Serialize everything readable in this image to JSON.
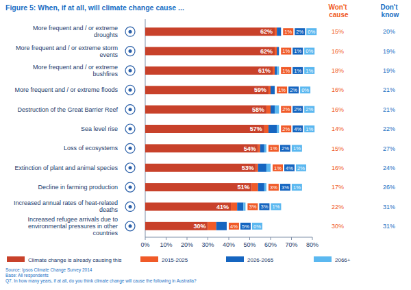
{
  "chart_data": {
    "type": "bar",
    "orientation": "horizontal",
    "stacked": true,
    "data_labels": true,
    "grid": false,
    "legend": "bottom",
    "title": "Figure 5: When, if at all, will climate change cause ...",
    "categories": [
      "More frequent and / or extreme droughts",
      "More frequent and / or extreme storm events",
      "More frequent and / or extreme bushfires",
      "More frequent and / or extreme floods",
      "Destruction of the Great Barrier Reef",
      "Sea level rise",
      "Loss of ecosystems",
      "Extinction of plant and animal species",
      "Decline in farming production",
      "Increased annual rates of heat-related deaths",
      "Increased refugee arrivals due to environmental pressures in other countries"
    ],
    "series": [
      {
        "name": "Climate change is already causing this",
        "color": "#c8412a",
        "values": [
          62,
          62,
          61,
          59,
          58,
          57,
          54,
          53,
          51,
          41,
          30
        ],
        "value_labels": [
          "62%",
          "62%",
          "61%",
          "59%",
          "58%",
          "57%",
          "54%",
          "53%",
          "51%",
          "41%",
          "30%"
        ]
      },
      {
        "name": "2015-2025",
        "color": "#f05a28",
        "values": [
          1,
          1,
          1,
          1,
          2,
          2,
          1,
          1,
          3,
          3,
          4
        ],
        "value_labels": [
          "1%",
          "1%",
          "1%",
          "1%",
          "2%",
          "2%",
          "1%",
          "1%",
          "3%",
          "3%",
          "4%"
        ]
      },
      {
        "name": "2026-2065",
        "color": "#1565c0",
        "values": [
          2,
          1,
          1,
          2,
          2,
          4,
          2,
          4,
          3,
          3,
          5
        ],
        "value_labels": [
          "2%",
          "1%",
          "1%",
          "2%",
          "2%",
          "4%",
          "2%",
          "4%",
          "3%",
          "3%",
          "5%"
        ]
      },
      {
        "name": "2066+",
        "color": "#5bb8f0",
        "values": [
          0,
          0,
          1,
          0,
          2,
          1,
          1,
          2,
          1,
          1,
          0
        ],
        "value_labels": [
          "0%",
          "0%",
          "1%",
          "0%",
          "2%",
          "1%",
          "1%",
          "2%",
          "1%",
          "1%",
          "0%"
        ]
      }
    ],
    "xlim": [
      0,
      80
    ],
    "xticks": [
      {
        "value": 0,
        "label": "0%"
      },
      {
        "value": 10,
        "label": "10%"
      },
      {
        "value": 20,
        "label": "20%"
      },
      {
        "value": 30,
        "label": "30%"
      },
      {
        "value": 40,
        "label": "40%"
      },
      {
        "value": 50,
        "label": "50%"
      },
      {
        "value": 60,
        "label": "60%"
      },
      {
        "value": 70,
        "label": "70%"
      },
      {
        "value": 80,
        "label": "80%"
      }
    ],
    "extra_columns": [
      {
        "name": "Won't cause",
        "color": "#f05a28",
        "values": [
          15,
          16,
          18,
          16,
          16,
          14,
          15,
          16,
          17,
          22,
          30
        ],
        "value_labels": [
          "15%",
          "16%",
          "18%",
          "16%",
          "16%",
          "14%",
          "15%",
          "16%",
          "17%",
          "22%",
          "30%"
        ]
      },
      {
        "name": "Don't know",
        "color": "#1a6fc4",
        "values": [
          20,
          19,
          19,
          21,
          21,
          22,
          27,
          24,
          26,
          31,
          31
        ],
        "value_labels": [
          "20%",
          "19%",
          "19%",
          "21%",
          "21%",
          "22%",
          "27%",
          "24%",
          "26%",
          "31%",
          "31%"
        ]
      }
    ],
    "notes": [
      "Source: Ipsos Climate Change Survey 2014",
      "Base: All respondents",
      "Q7. In how many years, if at all, do you think climate change will cause the following in Australia?"
    ]
  }
}
